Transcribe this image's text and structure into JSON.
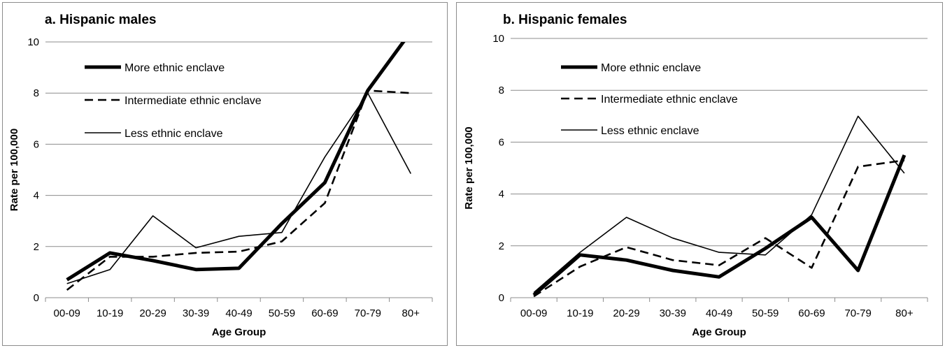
{
  "chart_data": [
    {
      "type": "line",
      "title": "a. Hispanic males",
      "xlabel": "Age Group",
      "ylabel": "Rate per 100,000",
      "categories": [
        "00-09",
        "10-19",
        "20-29",
        "30-39",
        "40-49",
        "50-59",
        "60-69",
        "70-79",
        "80+"
      ],
      "ylim": [
        0,
        10
      ],
      "yticks": [
        "0",
        "2",
        "4",
        "6",
        "8",
        "10"
      ],
      "grid": "horizontal",
      "legend_placement": "top-left",
      "series": [
        {
          "name": "More ethnic enclave",
          "style": "thick",
          "values": [
            0.7,
            1.75,
            1.45,
            1.1,
            1.15,
            2.9,
            4.5,
            8.1,
            10.4
          ]
        },
        {
          "name": "Intermediate ethnic enclave",
          "style": "dashed",
          "values": [
            0.3,
            1.6,
            1.6,
            1.75,
            1.8,
            2.2,
            3.7,
            8.1,
            8.0
          ]
        },
        {
          "name": "Less ethnic enclave",
          "style": "thin",
          "values": [
            0.55,
            1.1,
            3.2,
            1.95,
            2.4,
            2.55,
            5.5,
            8.0,
            4.85
          ]
        }
      ]
    },
    {
      "type": "line",
      "title": "b. Hispanic females",
      "xlabel": "Age Group",
      "ylabel": "Rate per 100,000",
      "categories": [
        "00-09",
        "10-19",
        "20-29",
        "30-39",
        "40-49",
        "50-59",
        "60-69",
        "70-79",
        "80+"
      ],
      "ylim": [
        0,
        10
      ],
      "yticks": [
        "0",
        "2",
        "4",
        "6",
        "8",
        "10"
      ],
      "grid": "horizontal",
      "legend_placement": "top-left",
      "series": [
        {
          "name": "More ethnic enclave",
          "style": "thick",
          "values": [
            0.1,
            1.65,
            1.45,
            1.05,
            0.8,
            1.9,
            3.1,
            1.05,
            5.5
          ]
        },
        {
          "name": "Intermediate ethnic enclave",
          "style": "dashed",
          "values": [
            0.05,
            1.2,
            1.95,
            1.45,
            1.25,
            2.3,
            1.15,
            5.05,
            5.3
          ]
        },
        {
          "name": "Less ethnic enclave",
          "style": "thin",
          "values": [
            0.2,
            1.75,
            3.1,
            2.3,
            1.75,
            1.65,
            3.2,
            7.0,
            4.8
          ]
        }
      ]
    }
  ]
}
